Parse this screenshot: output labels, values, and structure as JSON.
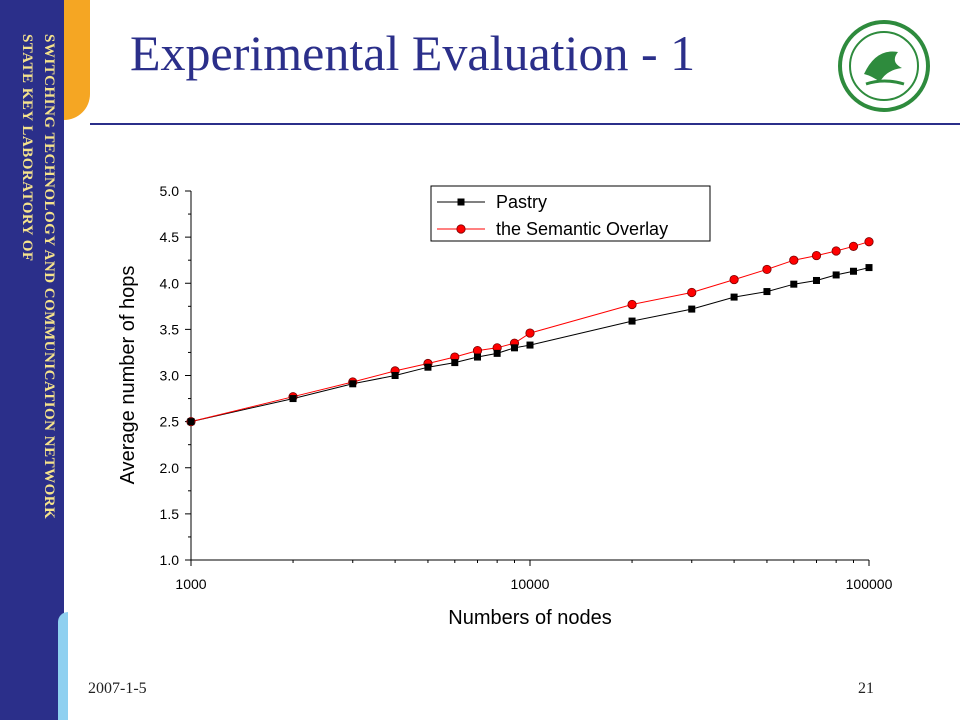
{
  "slide": {
    "title": "Experimental Evaluation - 1",
    "sidebar_line1": "SWITCHING TECHNOLOGY AND COMMUNICATION NETWORK",
    "sidebar_line2": "STATE KEY LABORATORY OF",
    "date": "2007-1-5",
    "page_number": "21",
    "logo": "university-seal-icon"
  },
  "colors": {
    "brand_blue": "#2b2f8a",
    "sidebar_text": "#f5e38c",
    "accent_orange": "#f5a623",
    "accent_light_blue": "#8fd0f0",
    "series_pastry": "#000000",
    "series_semantic": "#ff0000"
  },
  "chart_data": {
    "type": "line",
    "xscale": "log",
    "xlabel": "Numbers of nodes",
    "ylabel": "Average number of hops",
    "xlim": [
      1000,
      100000
    ],
    "ylim": [
      1.0,
      5.0
    ],
    "x_ticks": [
      "1000",
      "10000",
      "100000"
    ],
    "y_ticks": [
      "1.0",
      "1.5",
      "2.0",
      "2.5",
      "3.0",
      "3.5",
      "4.0",
      "4.5",
      "5.0"
    ],
    "legend_position": "top-right",
    "grid": false,
    "series": [
      {
        "name": "Pastry",
        "marker": "square",
        "color": "#000000",
        "x": [
          1000,
          2000,
          3000,
          4000,
          5000,
          6000,
          7000,
          8000,
          9000,
          10000,
          20000,
          30000,
          40000,
          50000,
          60000,
          70000,
          80000,
          90000,
          100000
        ],
        "y": [
          2.5,
          2.75,
          2.91,
          3.0,
          3.09,
          3.14,
          3.2,
          3.24,
          3.3,
          3.33,
          3.59,
          3.72,
          3.85,
          3.91,
          3.99,
          4.03,
          4.09,
          4.13,
          4.17
        ]
      },
      {
        "name": "the Semantic Overlay",
        "marker": "circle",
        "color": "#ff0000",
        "x": [
          1000,
          2000,
          3000,
          4000,
          5000,
          6000,
          7000,
          8000,
          9000,
          10000,
          20000,
          30000,
          40000,
          50000,
          60000,
          70000,
          80000,
          90000,
          100000
        ],
        "y": [
          2.5,
          2.77,
          2.93,
          3.05,
          3.13,
          3.2,
          3.27,
          3.3,
          3.35,
          3.46,
          3.77,
          3.9,
          4.04,
          4.15,
          4.25,
          4.3,
          4.35,
          4.4,
          4.45
        ]
      }
    ]
  }
}
